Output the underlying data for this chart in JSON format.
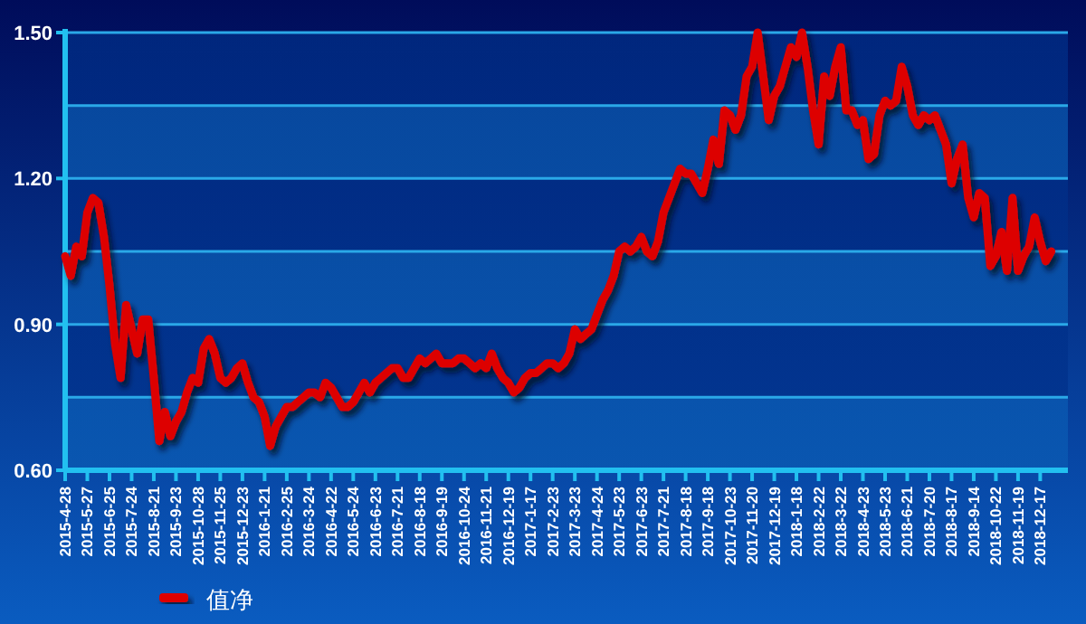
{
  "chart_data": {
    "type": "line",
    "categories": [
      "2015-4-28",
      null,
      null,
      null,
      "2015-5-27",
      null,
      null,
      null,
      "2015-6-25",
      null,
      null,
      null,
      "2015-7-24",
      null,
      null,
      null,
      "2015-8-21",
      null,
      null,
      null,
      "2015-9-23",
      null,
      null,
      null,
      "2015-10-28",
      null,
      null,
      null,
      "2015-11-25",
      null,
      null,
      null,
      "2015-12-23",
      null,
      null,
      null,
      "2016-1-21",
      null,
      null,
      null,
      "2016-2-25",
      null,
      null,
      null,
      "2016-3-24",
      null,
      null,
      null,
      "2016-4-22",
      null,
      null,
      null,
      "2016-5-24",
      null,
      null,
      null,
      "2016-6-23",
      null,
      null,
      null,
      "2016-7-21",
      null,
      null,
      null,
      "2016-8-18",
      null,
      null,
      null,
      "2016-9-19",
      null,
      null,
      null,
      "2016-10-24",
      null,
      null,
      null,
      "2016-11-21",
      null,
      null,
      null,
      "2016-12-19",
      null,
      null,
      null,
      "2017-1-17",
      null,
      null,
      null,
      "2017-2-23",
      null,
      null,
      null,
      "2017-3-23",
      null,
      null,
      null,
      "2017-4-24",
      null,
      null,
      null,
      "2017-5-23",
      null,
      null,
      null,
      "2017-6-23",
      null,
      null,
      null,
      "2017-7-21",
      null,
      null,
      null,
      "2017-8-18",
      null,
      null,
      null,
      "2017-9-18",
      null,
      null,
      null,
      "2017-10-23",
      null,
      null,
      null,
      "2017-11-20",
      null,
      null,
      null,
      "2017-12-19",
      null,
      null,
      null,
      "2018-1-18",
      null,
      null,
      null,
      "2018-2-22",
      null,
      null,
      null,
      "2018-3-22",
      null,
      null,
      null,
      "2018-4-23",
      null,
      null,
      null,
      "2018-5-23",
      null,
      null,
      null,
      "2018-6-21",
      null,
      null,
      null,
      "2018-7-20",
      null,
      null,
      null,
      "2018-8-17",
      null,
      null,
      null,
      "2018-9-14",
      null,
      null,
      null,
      "2018-10-22",
      null,
      null,
      null,
      "2018-11-19",
      null,
      null,
      null,
      "2018-12-17",
      null,
      null
    ],
    "series": [
      {
        "name": "值净",
        "color": "#dd0000",
        "values": [
          1.04,
          1.0,
          1.06,
          1.04,
          1.13,
          1.16,
          1.15,
          1.08,
          0.98,
          0.86,
          0.79,
          0.94,
          0.89,
          0.84,
          0.91,
          0.91,
          0.79,
          0.66,
          0.72,
          0.67,
          0.7,
          0.72,
          0.76,
          0.79,
          0.78,
          0.85,
          0.87,
          0.84,
          0.79,
          0.78,
          0.79,
          0.81,
          0.82,
          0.78,
          0.75,
          0.74,
          0.71,
          0.65,
          0.69,
          0.71,
          0.73,
          0.73,
          0.74,
          0.75,
          0.76,
          0.76,
          0.75,
          0.78,
          0.77,
          0.75,
          0.73,
          0.73,
          0.74,
          0.76,
          0.78,
          0.76,
          0.78,
          0.79,
          0.8,
          0.81,
          0.81,
          0.79,
          0.79,
          0.81,
          0.83,
          0.82,
          0.83,
          0.84,
          0.82,
          0.82,
          0.82,
          0.83,
          0.83,
          0.82,
          0.81,
          0.82,
          0.81,
          0.84,
          0.81,
          0.79,
          0.78,
          0.76,
          0.77,
          0.79,
          0.8,
          0.8,
          0.81,
          0.82,
          0.82,
          0.81,
          0.82,
          0.84,
          0.89,
          0.87,
          0.88,
          0.89,
          0.92,
          0.95,
          0.97,
          1.0,
          1.05,
          1.06,
          1.05,
          1.06,
          1.08,
          1.05,
          1.04,
          1.07,
          1.13,
          1.16,
          1.19,
          1.22,
          1.21,
          1.21,
          1.19,
          1.17,
          1.22,
          1.28,
          1.23,
          1.34,
          1.33,
          1.3,
          1.33,
          1.41,
          1.43,
          1.5,
          1.41,
          1.32,
          1.37,
          1.39,
          1.43,
          1.47,
          1.45,
          1.5,
          1.43,
          1.34,
          1.27,
          1.41,
          1.37,
          1.43,
          1.47,
          1.34,
          1.34,
          1.31,
          1.32,
          1.24,
          1.25,
          1.33,
          1.36,
          1.35,
          1.36,
          1.43,
          1.39,
          1.33,
          1.31,
          1.33,
          1.32,
          1.33,
          1.3,
          1.27,
          1.19,
          1.24,
          1.27,
          1.16,
          1.12,
          1.17,
          1.16,
          1.02,
          1.04,
          1.09,
          1.01,
          1.16,
          1.01,
          1.04,
          1.06,
          1.12,
          1.07,
          1.03,
          1.05
        ]
      }
    ],
    "ylim": [
      0.6,
      1.5
    ],
    "yticks": [
      {
        "value": 0.6,
        "label": "0.60"
      },
      {
        "value": 0.75,
        "label": null
      },
      {
        "value": 0.9,
        "label": "0.90"
      },
      {
        "value": 1.05,
        "label": null
      },
      {
        "value": 1.2,
        "label": "1.20"
      },
      {
        "value": 1.35,
        "label": null
      },
      {
        "value": 1.5,
        "label": "1.50"
      }
    ],
    "grid": "y",
    "legend": "bottom left"
  }
}
